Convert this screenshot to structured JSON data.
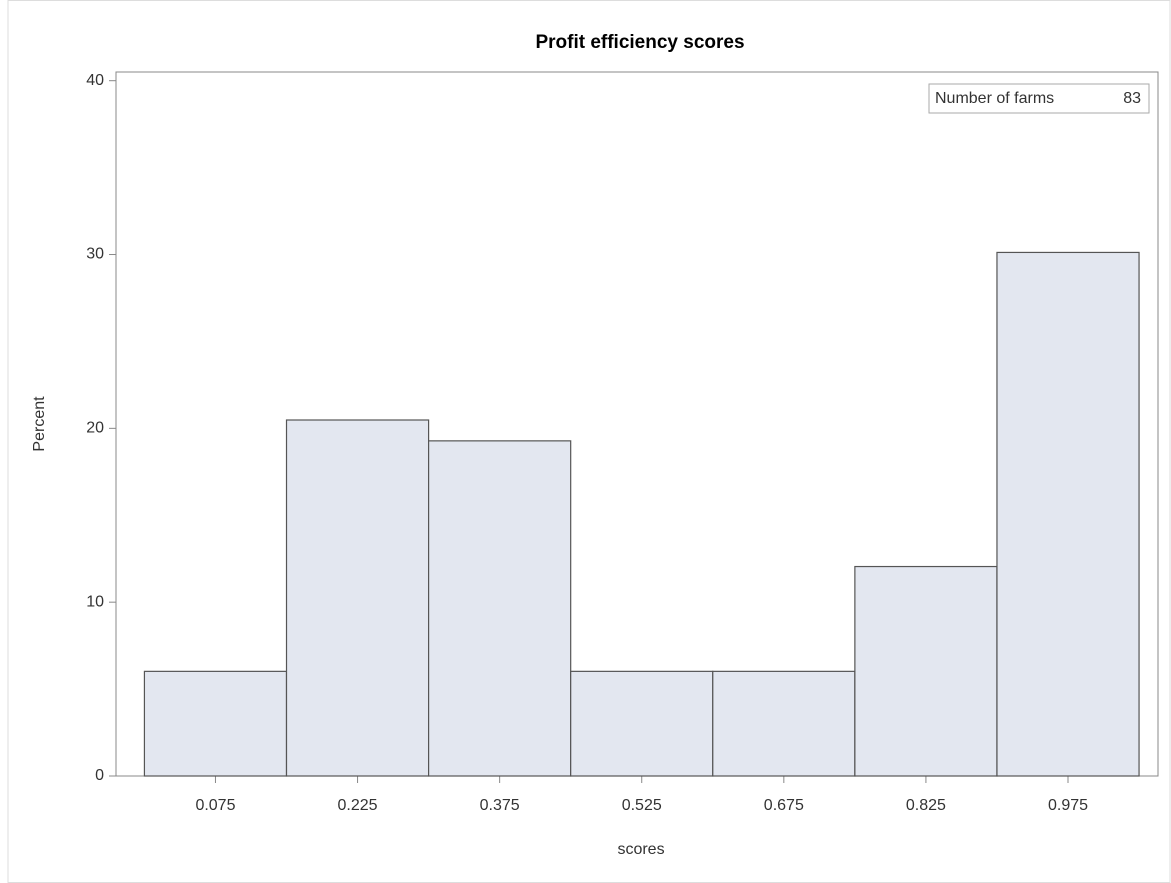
{
  "chart_data": {
    "type": "histogram",
    "title": "Profit efficiency scores",
    "x_label": "scores",
    "y_label": "Percent",
    "bins": [
      0,
      0.15,
      0.3,
      0.45,
      0.6,
      0.75,
      0.9,
      1.05
    ],
    "values": [
      6.02,
      20.48,
      19.28,
      6.02,
      6.02,
      12.05,
      30.12
    ],
    "color": "#e3e7f0",
    "edge_color": "#555555",
    "xlim": [
      -0.03,
      1.07
    ],
    "xticks": [
      0.075,
      0.225,
      0.375,
      0.525,
      0.675,
      0.825,
      0.975
    ],
    "ylim": [
      0,
      40.5
    ],
    "yticks": [
      0,
      10,
      20,
      30,
      40
    ],
    "inset": {
      "label": "Number of farms",
      "value": 83
    }
  }
}
